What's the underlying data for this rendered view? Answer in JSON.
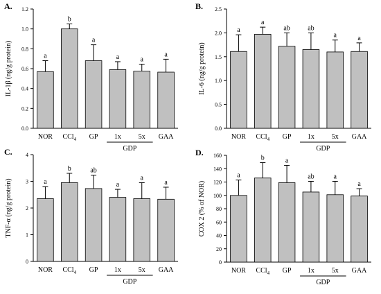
{
  "chart_data": [
    {
      "panel": "A.",
      "type": "bar",
      "categories": [
        "NOR",
        "CCl4",
        "GP",
        "1x",
        "5x",
        "GAA"
      ],
      "values": [
        0.57,
        1.0,
        0.68,
        0.59,
        0.575,
        0.565
      ],
      "errors": [
        0.11,
        0.05,
        0.16,
        0.08,
        0.07,
        0.13
      ],
      "letters": [
        "a",
        "b",
        "a",
        "a",
        "a",
        "a"
      ],
      "ylabel": "IL-1β (ng/g protein)",
      "ylim": [
        0,
        1.2
      ],
      "yticks": [
        "0.0",
        "0.2",
        "0.4",
        "0.6",
        "0.8",
        "1.0",
        "1.2"
      ],
      "group_label": "GDP",
      "bar_color": "#c0c0c0"
    },
    {
      "panel": "B.",
      "type": "bar",
      "categories": [
        "NOR",
        "CCl4",
        "GP",
        "1x",
        "5x",
        "GAA"
      ],
      "values": [
        1.61,
        1.97,
        1.72,
        1.65,
        1.6,
        1.61
      ],
      "errors": [
        0.35,
        0.15,
        0.28,
        0.35,
        0.25,
        0.18
      ],
      "letters": [
        "a",
        "a",
        "ab",
        "ab",
        "a",
        "a"
      ],
      "ylabel": "IL-6 (ng/g protein)",
      "ylim": [
        0,
        2.5
      ],
      "yticks": [
        "0.0",
        "0.5",
        "1.0",
        "1.5",
        "2.0",
        "2.5"
      ],
      "group_label": "GDP",
      "bar_color": "#c0c0c0"
    },
    {
      "panel": "C.",
      "type": "bar",
      "categories": [
        "NOR",
        "CCl4",
        "GP",
        "1x",
        "5x",
        "GAA"
      ],
      "values": [
        2.35,
        2.95,
        2.73,
        2.4,
        2.35,
        2.33
      ],
      "errors": [
        0.45,
        0.35,
        0.5,
        0.3,
        0.6,
        0.45
      ],
      "letters": [
        "a",
        "b",
        "ab",
        "a",
        "a",
        "a"
      ],
      "ylabel": "TNF-α (ng/g protein)",
      "ylim": [
        0,
        4
      ],
      "yticks": [
        "0",
        "1",
        "2",
        "3",
        "4"
      ],
      "group_label": "GDP",
      "bar_color": "#c0c0c0"
    },
    {
      "panel": "D.",
      "type": "bar",
      "categories": [
        "NOR",
        "CCl4",
        "GP",
        "1x",
        "5x",
        "GAA"
      ],
      "values": [
        100,
        126,
        119,
        105,
        101,
        99
      ],
      "errors": [
        23,
        23,
        26,
        16,
        20,
        11
      ],
      "letters": [
        "a",
        "b",
        "a",
        "ab",
        "a",
        "a"
      ],
      "ylabel": "COX 2 (% of NOR)",
      "ylim": [
        0,
        160
      ],
      "yticks": [
        "0",
        "20",
        "40",
        "60",
        "80",
        "100",
        "120",
        "140",
        "160"
      ],
      "group_label": "GDP",
      "bar_color": "#c0c0c0"
    }
  ]
}
